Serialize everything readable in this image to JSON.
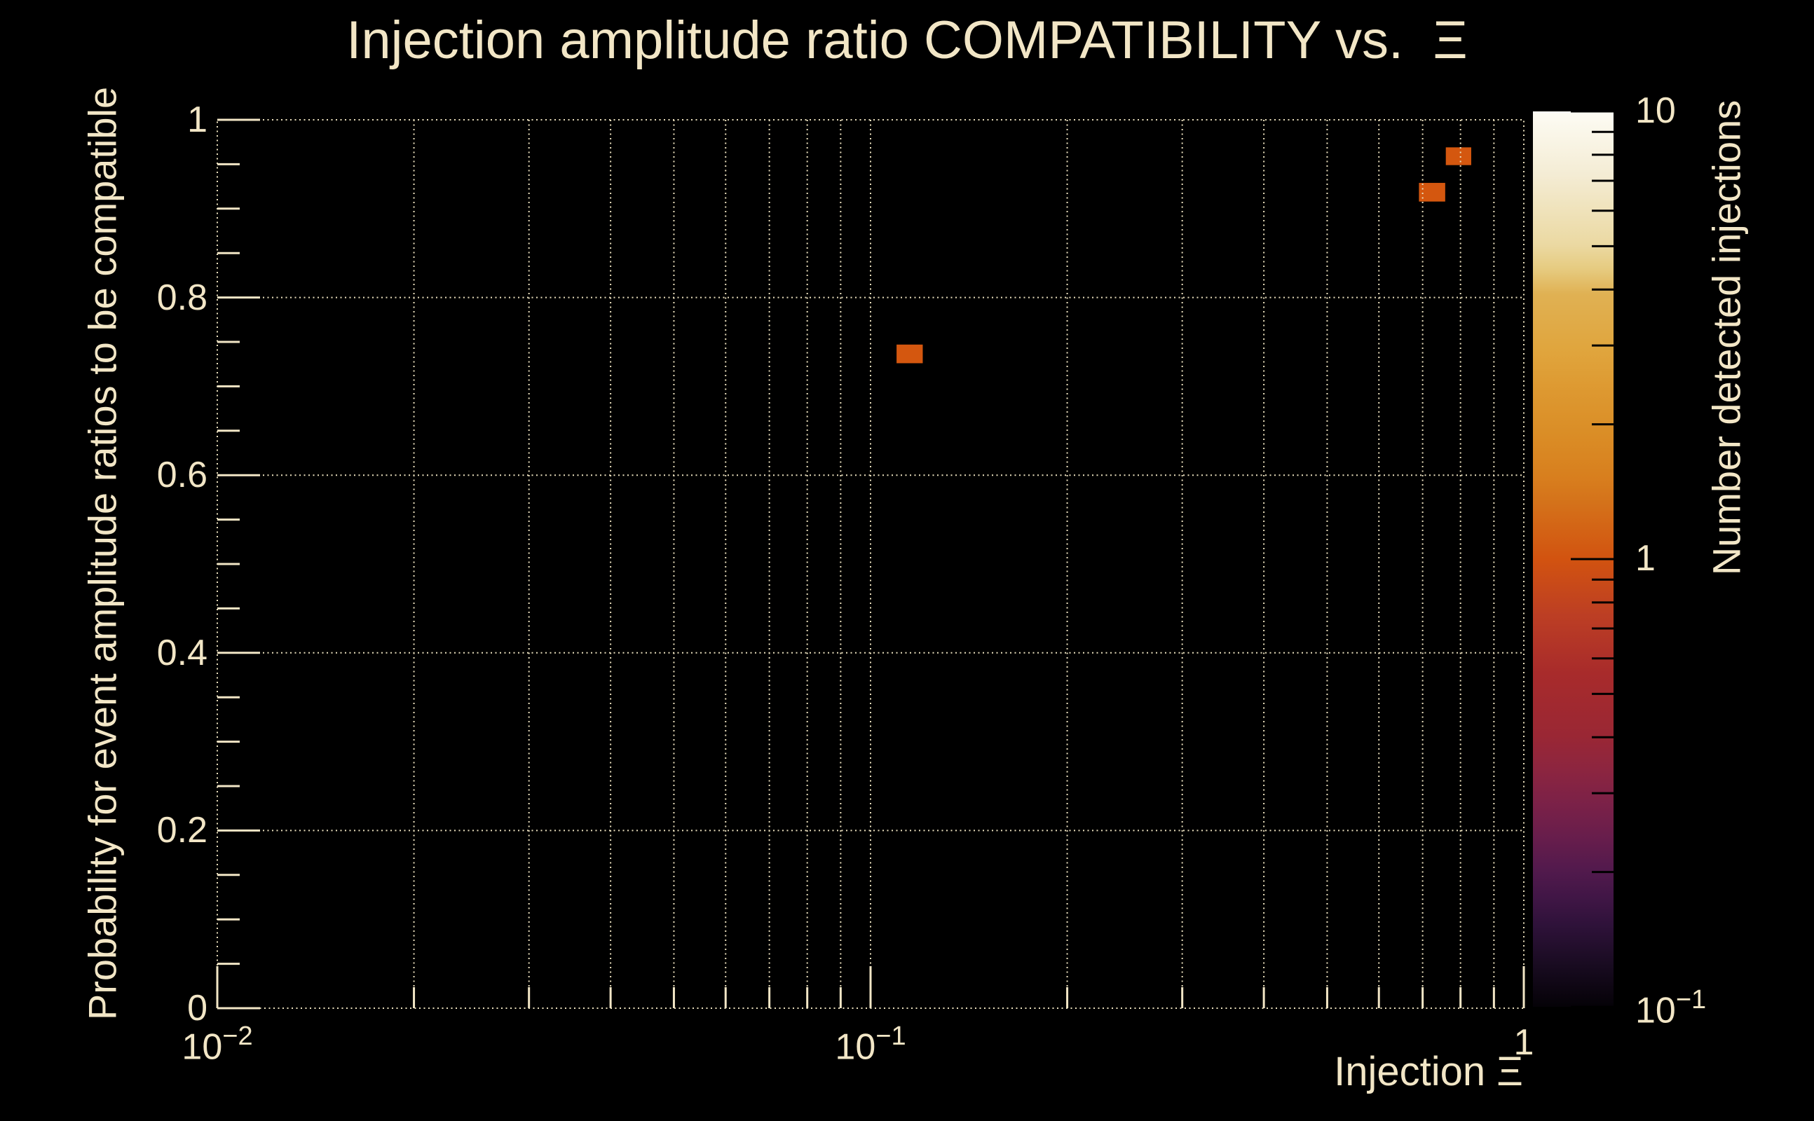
{
  "chart_data": {
    "type": "heatmap",
    "title": "Injection amplitude ratio COMPATIBILITY vs.  Ξ",
    "x_axis": {
      "label": "Injection Ξ",
      "scale": "log",
      "min": 0.01,
      "max": 1,
      "ticks": [
        {
          "value": 0.01,
          "base": "10",
          "exp": "−2"
        },
        {
          "value": 0.1,
          "base": "10",
          "exp": "−1"
        },
        {
          "value": 1,
          "base": "1",
          "exp": ""
        }
      ]
    },
    "y_axis": {
      "label": "Probability for event amplitude ratios to be compatible",
      "scale": "linear",
      "min": 0,
      "max": 1,
      "major_step": 0.2,
      "minor_step": 0.05,
      "ticks": [
        {
          "value": 0,
          "text": "0"
        },
        {
          "value": 0.2,
          "text": "0.2"
        },
        {
          "value": 0.4,
          "text": "0.4"
        },
        {
          "value": 0.6,
          "text": "0.6"
        },
        {
          "value": 0.8,
          "text": "0.8"
        },
        {
          "value": 1,
          "text": "1"
        }
      ]
    },
    "z_axis": {
      "label": "Number detected injections",
      "scale": "log",
      "min": 0.1,
      "max": 10,
      "ticks": [
        {
          "value": 10,
          "base": "10",
          "exp": ""
        },
        {
          "value": 1,
          "base": "1",
          "exp": ""
        },
        {
          "value": 0.1,
          "base": "10",
          "exp": "−1"
        }
      ]
    },
    "grid": true,
    "legend_position": "right-colorbar",
    "bins": [
      {
        "x_min": 0.1096,
        "x_max": 0.1202,
        "y_min": 0.726,
        "y_max": 0.747,
        "value": 1
      },
      {
        "x_min": 0.691,
        "x_max": 0.758,
        "y_min": 0.908,
        "y_max": 0.929,
        "value": 1
      },
      {
        "x_min": 0.7596,
        "x_max": 0.8308,
        "y_min": 0.949,
        "y_max": 0.969,
        "value": 1
      }
    ]
  },
  "colors": {
    "background": "#000000",
    "text": "#f2e6c6",
    "grid": "#eadfbd",
    "axis_tick": "#f2e6c6",
    "bin_fill": "#d4570f",
    "colorbar_tick": "#000000",
    "palette_stops": [
      [
        0,
        "#fdfcf4"
      ],
      [
        7.1,
        "#f4ecd4"
      ],
      [
        14.9,
        "#ebd9a2"
      ],
      [
        17.6,
        "#e6cb80"
      ],
      [
        20.4,
        "#e0b153"
      ],
      [
        26.7,
        "#e0a53d"
      ],
      [
        31.4,
        "#dd9830"
      ],
      [
        36.1,
        "#da8d26"
      ],
      [
        40.8,
        "#d87f1e"
      ],
      [
        43.9,
        "#d4711a"
      ],
      [
        50,
        "#d25310"
      ],
      [
        56.4,
        "#bc3e24"
      ],
      [
        62.7,
        "#a82b2b"
      ],
      [
        69.7,
        "#9a2734"
      ],
      [
        73.6,
        "#8c2540"
      ],
      [
        77.5,
        "#7a2148"
      ],
      [
        81.4,
        "#661d4c"
      ],
      [
        84.6,
        "#531a4d"
      ],
      [
        87.7,
        "#411646"
      ],
      [
        90.8,
        "#2f123a"
      ],
      [
        95.5,
        "#180b20"
      ],
      [
        100,
        "#050207"
      ]
    ]
  }
}
